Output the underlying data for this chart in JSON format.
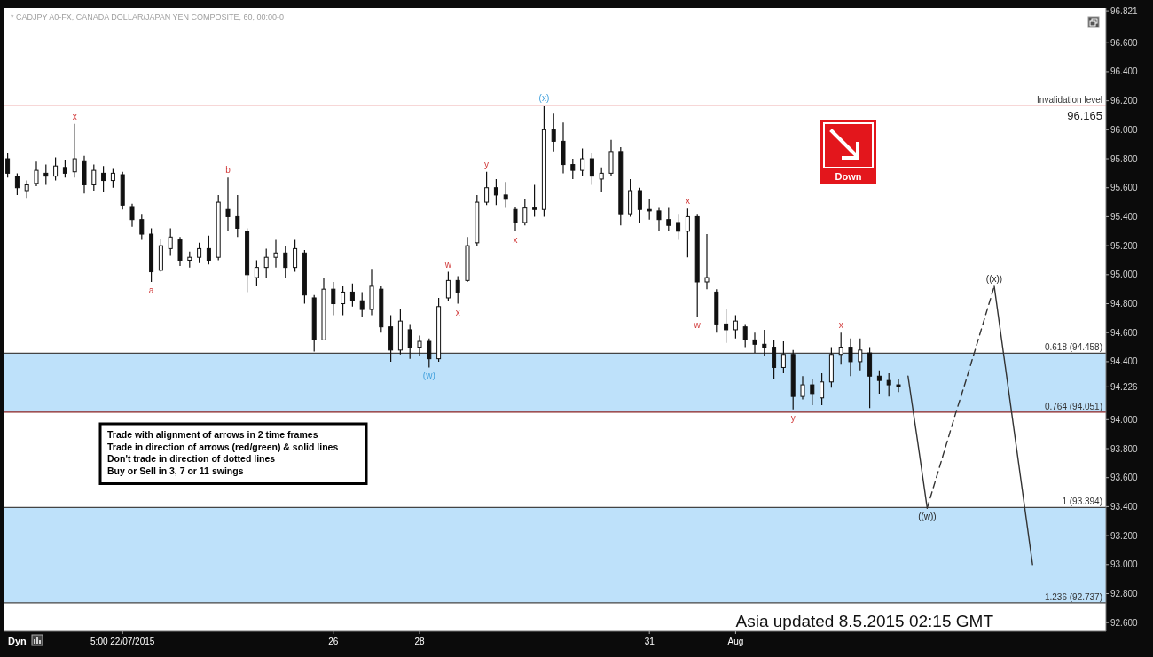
{
  "chart_data": {
    "type": "candlestick",
    "title": "* CADJPY A0-FX, CANADA DOLLAR/JAPAN YEN COMPOSITE, 60, 00:00-0",
    "color": "#111111",
    "categories": [
      null,
      null,
      null,
      null,
      null,
      null,
      null,
      null,
      null,
      null,
      null,
      null,
      "5:00 22/07/2015",
      null,
      null,
      null,
      null,
      null,
      null,
      null,
      null,
      null,
      null,
      null,
      null,
      null,
      null,
      null,
      null,
      null,
      null,
      null,
      null,
      null,
      "26",
      null,
      null,
      null,
      null,
      null,
      null,
      null,
      null,
      "28",
      null,
      null,
      null,
      null,
      null,
      null,
      null,
      null,
      null,
      null,
      null,
      null,
      null,
      null,
      null,
      null,
      null,
      null,
      null,
      null,
      null,
      null,
      null,
      "31",
      null,
      null,
      null,
      null,
      null,
      null,
      null,
      null,
      "Aug",
      null,
      null,
      null,
      null,
      null,
      null,
      null,
      null,
      null,
      null,
      null,
      null,
      null,
      null,
      null,
      null,
      null,
      null,
      null,
      null,
      null,
      null,
      null,
      null,
      null,
      null,
      null,
      null,
      null,
      null,
      null,
      null,
      null,
      null,
      null,
      null,
      null,
      null
    ],
    "ylim": [
      92.54,
      96.84
    ],
    "yticks": [
      {
        "value": 92.6,
        "label": "92.600"
      },
      {
        "value": 92.8,
        "label": "92.800"
      },
      {
        "value": 93.0,
        "label": "93.000"
      },
      {
        "value": 93.2,
        "label": "93.200"
      },
      {
        "value": 93.4,
        "label": "93.400"
      },
      {
        "value": 93.6,
        "label": "93.600"
      },
      {
        "value": 93.8,
        "label": "93.800"
      },
      {
        "value": 94.0,
        "label": "94.000"
      },
      94.226,
      {
        "value": 94.4,
        "label": "94.400"
      },
      {
        "value": 94.6,
        "label": "94.600"
      },
      {
        "value": 94.8,
        "label": "94.800"
      },
      {
        "value": 95.0,
        "label": "95.000"
      },
      {
        "value": 95.2,
        "label": "95.200"
      },
      {
        "value": 95.4,
        "label": "95.400"
      },
      {
        "value": 95.6,
        "label": "95.600"
      },
      {
        "value": 95.8,
        "label": "95.800"
      },
      {
        "value": 96.0,
        "label": "96.000"
      },
      {
        "value": 96.2,
        "label": "96.200"
      },
      {
        "value": 96.4,
        "label": "96.400"
      },
      {
        "value": 96.6,
        "label": "96.600"
      },
      96.821
    ],
    "ohlc": [
      [
        95.8,
        95.84,
        95.67,
        95.7
      ],
      [
        95.68,
        95.7,
        95.55,
        95.6
      ],
      [
        95.58,
        95.65,
        95.53,
        95.62
      ],
      [
        95.63,
        95.78,
        95.61,
        95.72
      ],
      [
        95.7,
        95.76,
        95.62,
        95.68
      ],
      [
        95.68,
        95.81,
        95.65,
        95.75
      ],
      [
        95.74,
        95.79,
        95.67,
        95.7
      ],
      [
        95.71,
        96.04,
        95.67,
        95.8
      ],
      [
        95.78,
        95.82,
        95.56,
        95.62
      ],
      [
        95.62,
        95.76,
        95.58,
        95.72
      ],
      [
        95.7,
        95.75,
        95.57,
        95.65
      ],
      [
        95.65,
        95.73,
        95.6,
        95.7
      ],
      [
        95.69,
        95.71,
        95.45,
        95.48
      ],
      [
        95.47,
        95.49,
        95.33,
        95.38
      ],
      [
        95.38,
        95.42,
        95.24,
        95.28
      ],
      [
        95.28,
        95.32,
        94.95,
        95.02
      ],
      [
        95.03,
        95.25,
        95.02,
        95.2
      ],
      [
        95.18,
        95.32,
        95.13,
        95.26
      ],
      [
        95.24,
        95.26,
        95.06,
        95.1
      ],
      [
        95.1,
        95.16,
        95.05,
        95.12
      ],
      [
        95.12,
        95.22,
        95.08,
        95.18
      ],
      [
        95.18,
        95.27,
        95.07,
        95.1
      ],
      [
        95.12,
        95.55,
        95.1,
        95.5
      ],
      [
        95.45,
        95.67,
        95.3,
        95.4
      ],
      [
        95.4,
        95.55,
        95.26,
        95.32
      ],
      [
        95.3,
        95.32,
        94.88,
        95.0
      ],
      [
        94.98,
        95.1,
        94.92,
        95.05
      ],
      [
        95.05,
        95.18,
        94.98,
        95.12
      ],
      [
        95.12,
        95.24,
        95.05,
        95.15
      ],
      [
        95.15,
        95.2,
        94.98,
        95.05
      ],
      [
        95.05,
        95.24,
        95.02,
        95.18
      ],
      [
        95.15,
        95.17,
        94.8,
        94.86
      ],
      [
        94.84,
        94.86,
        94.47,
        94.55
      ],
      [
        94.55,
        94.98,
        94.55,
        94.9
      ],
      [
        94.9,
        94.95,
        94.72,
        94.8
      ],
      [
        94.8,
        94.92,
        94.72,
        94.88
      ],
      [
        94.88,
        94.94,
        94.78,
        94.82
      ],
      [
        94.82,
        94.88,
        94.71,
        94.76
      ],
      [
        94.76,
        95.04,
        94.72,
        94.92
      ],
      [
        94.9,
        94.92,
        94.6,
        94.64
      ],
      [
        94.64,
        94.72,
        94.4,
        94.48
      ],
      [
        94.48,
        94.76,
        94.45,
        94.68
      ],
      [
        94.62,
        94.66,
        94.42,
        94.5
      ],
      [
        94.5,
        94.58,
        94.44,
        94.54
      ],
      [
        94.54,
        94.56,
        94.36,
        94.42
      ],
      [
        94.42,
        94.84,
        94.4,
        94.78
      ],
      [
        94.84,
        95.02,
        94.82,
        94.96
      ],
      [
        94.96,
        94.99,
        94.8,
        94.88
      ],
      [
        94.96,
        95.26,
        94.95,
        95.2
      ],
      [
        95.22,
        95.55,
        95.2,
        95.5
      ],
      [
        95.5,
        95.71,
        95.48,
        95.6
      ],
      [
        95.6,
        95.66,
        95.48,
        95.55
      ],
      [
        95.55,
        95.64,
        95.46,
        95.52
      ],
      [
        95.45,
        95.47,
        95.3,
        95.36
      ],
      [
        95.36,
        95.52,
        95.34,
        95.46
      ],
      [
        95.46,
        95.62,
        95.4,
        95.45
      ],
      [
        95.45,
        96.165,
        95.4,
        96.0
      ],
      [
        96.0,
        96.11,
        95.85,
        95.92
      ],
      [
        95.92,
        96.05,
        95.7,
        95.76
      ],
      [
        95.76,
        95.8,
        95.66,
        95.72
      ],
      [
        95.72,
        95.87,
        95.68,
        95.8
      ],
      [
        95.8,
        95.84,
        95.62,
        95.68
      ],
      [
        95.66,
        95.74,
        95.57,
        95.7
      ],
      [
        95.7,
        95.93,
        95.68,
        95.85
      ],
      [
        95.85,
        95.88,
        95.34,
        95.42
      ],
      [
        95.42,
        95.66,
        95.4,
        95.58
      ],
      [
        95.58,
        95.6,
        95.36,
        95.45
      ],
      [
        95.45,
        95.52,
        95.38,
        95.44
      ],
      [
        95.44,
        95.46,
        95.3,
        95.38
      ],
      [
        95.38,
        95.46,
        95.3,
        95.34
      ],
      [
        95.36,
        95.42,
        95.24,
        95.3
      ],
      [
        95.3,
        95.456,
        95.12,
        95.4
      ],
      [
        95.4,
        95.42,
        94.71,
        94.95
      ],
      [
        94.95,
        95.28,
        94.9,
        94.98
      ],
      [
        94.88,
        94.9,
        94.6,
        94.66
      ],
      [
        94.66,
        94.76,
        94.53,
        94.62
      ],
      [
        94.62,
        94.72,
        94.56,
        94.68
      ],
      [
        94.64,
        94.66,
        94.5,
        94.55
      ],
      [
        94.55,
        94.6,
        94.46,
        94.52
      ],
      [
        94.52,
        94.62,
        94.44,
        94.5
      ],
      [
        94.5,
        94.55,
        94.28,
        94.36
      ],
      [
        94.36,
        94.54,
        94.32,
        94.45
      ],
      [
        94.45,
        94.48,
        94.07,
        94.16
      ],
      [
        94.16,
        94.3,
        94.14,
        94.24
      ],
      [
        94.24,
        94.28,
        94.1,
        94.18
      ],
      [
        94.15,
        94.32,
        94.1,
        94.26
      ],
      [
        94.26,
        94.5,
        94.22,
        94.45
      ],
      [
        94.45,
        94.6,
        94.38,
        94.5
      ],
      [
        94.5,
        94.56,
        94.3,
        94.4
      ],
      [
        94.4,
        94.56,
        94.34,
        94.48
      ],
      [
        94.46,
        94.5,
        94.08,
        94.3
      ],
      [
        94.3,
        94.34,
        94.18,
        94.27
      ],
      [
        94.27,
        94.32,
        94.16,
        94.24
      ],
      [
        94.24,
        94.28,
        94.19,
        94.226
      ],
      null,
      null,
      null,
      null,
      null,
      null,
      null,
      null,
      null,
      null,
      null,
      null,
      null,
      null,
      null,
      null,
      null,
      null,
      null,
      null,
      null
    ],
    "series": [
      {
        "type": "line",
        "color": "#333333",
        "line_style": "solid",
        "values": [
          null,
          null,
          null,
          null,
          null,
          null,
          null,
          null,
          null,
          null,
          null,
          null,
          null,
          null,
          null,
          null,
          null,
          null,
          null,
          null,
          null,
          null,
          null,
          null,
          null,
          null,
          null,
          null,
          null,
          null,
          null,
          null,
          null,
          null,
          null,
          null,
          null,
          null,
          null,
          null,
          null,
          null,
          null,
          null,
          null,
          null,
          null,
          null,
          null,
          null,
          null,
          null,
          null,
          null,
          null,
          null,
          null,
          null,
          null,
          null,
          null,
          null,
          null,
          null,
          null,
          null,
          null,
          null,
          null,
          null,
          null,
          null,
          null,
          null,
          null,
          null,
          null,
          null,
          null,
          null,
          null,
          null,
          null,
          null,
          null,
          null,
          null,
          null,
          null,
          null,
          null,
          null,
          null,
          null,
          94.3,
          93.85,
          93.39,
          null,
          null,
          null,
          null,
          null,
          null,
          null,
          null,
          null,
          null,
          null,
          null,
          null,
          null,
          null,
          null,
          null,
          null
        ]
      },
      {
        "type": "line",
        "color": "#333333",
        "line_style": "dashed",
        "values": [
          null,
          null,
          null,
          null,
          null,
          null,
          null,
          null,
          null,
          null,
          null,
          null,
          null,
          null,
          null,
          null,
          null,
          null,
          null,
          null,
          null,
          null,
          null,
          null,
          null,
          null,
          null,
          null,
          null,
          null,
          null,
          null,
          null,
          null,
          null,
          null,
          null,
          null,
          null,
          null,
          null,
          null,
          null,
          null,
          null,
          null,
          null,
          null,
          null,
          null,
          null,
          null,
          null,
          null,
          null,
          null,
          null,
          null,
          null,
          null,
          null,
          null,
          null,
          null,
          null,
          null,
          null,
          null,
          null,
          null,
          null,
          null,
          null,
          null,
          null,
          null,
          null,
          null,
          null,
          null,
          null,
          null,
          null,
          null,
          null,
          null,
          null,
          null,
          null,
          null,
          null,
          null,
          null,
          null,
          null,
          null,
          93.39,
          93.61,
          93.83,
          94.05,
          94.26,
          94.48,
          94.7,
          94.92,
          null,
          null,
          null,
          null,
          null,
          null,
          null,
          null,
          null,
          null,
          null
        ]
      },
      {
        "type": "line",
        "color": "#333333",
        "line_style": "solid",
        "values": [
          null,
          null,
          null,
          null,
          null,
          null,
          null,
          null,
          null,
          null,
          null,
          null,
          null,
          null,
          null,
          null,
          null,
          null,
          null,
          null,
          null,
          null,
          null,
          null,
          null,
          null,
          null,
          null,
          null,
          null,
          null,
          null,
          null,
          null,
          null,
          null,
          null,
          null,
          null,
          null,
          null,
          null,
          null,
          null,
          null,
          null,
          null,
          null,
          null,
          null,
          null,
          null,
          null,
          null,
          null,
          null,
          null,
          null,
          null,
          null,
          null,
          null,
          null,
          null,
          null,
          null,
          null,
          null,
          null,
          null,
          null,
          null,
          null,
          null,
          null,
          null,
          null,
          null,
          null,
          null,
          null,
          null,
          null,
          null,
          null,
          null,
          null,
          null,
          null,
          null,
          null,
          null,
          null,
          null,
          null,
          null,
          null,
          null,
          null,
          null,
          null,
          null,
          null,
          94.92,
          94.44,
          93.96,
          93.48,
          93.0,
          null,
          null,
          null,
          null,
          null,
          null,
          null
        ]
      }
    ],
    "bands": [
      {
        "axis": "y",
        "from": 94.051,
        "to": 94.458,
        "color": "#b3dcf9"
      },
      {
        "axis": "y",
        "from": 92.737,
        "to": 93.394,
        "color": "#b3dcf9"
      }
    ],
    "ref_lines": [
      {
        "axis": "y",
        "value": 96.165,
        "label": "Invalidation level",
        "color": "#e06060"
      },
      {
        "axis": "y",
        "value": 94.458,
        "label": "0.618 (94.458)",
        "color": "#444444"
      },
      {
        "axis": "y",
        "value": 94.051,
        "label": "0.764 (94.051)",
        "color": "#8b2020"
      },
      {
        "axis": "y",
        "value": 93.394,
        "label": "1 (93.394)",
        "color": "#444444"
      },
      {
        "axis": "y",
        "value": 92.737,
        "label": "1.236 (92.737)",
        "color": "#444444"
      }
    ],
    "annotations": [
      {
        "text": "x",
        "y": 96.04
      },
      {
        "text": "a",
        "y": 94.95
      },
      {
        "text": "b",
        "y": 95.67
      },
      {
        "text": "(w)",
        "y": 94.36
      },
      {
        "text": "w",
        "y": 95.02
      },
      {
        "text": "x",
        "y": 94.8
      },
      {
        "text": "y",
        "y": 95.71
      },
      {
        "text": "x",
        "y": 95.3
      },
      {
        "text": "(x)",
        "y": 96.165
      },
      {
        "text": "x",
        "y": 95.456
      },
      {
        "text": "w",
        "y": 94.71
      },
      {
        "text": "y",
        "y": 94.07
      },
      {
        "text": "x",
        "y": 94.6
      },
      {
        "text": "((w))",
        "y": 93.39
      },
      {
        "text": "((x))",
        "y": 94.92
      },
      {
        "text": "96.165",
        "y": 96.165
      },
      "Trade with alignment of arrows in 2 time frames",
      "Trade in direction of arrows (red/green) & solid lines",
      "Don't trade in direction of dotted lines",
      "Buy or Sell in 3, 7 or 11 swings",
      "Down",
      "Asia updated 8.5.2015 02:15 GMT",
      "Dyn"
    ]
  }
}
